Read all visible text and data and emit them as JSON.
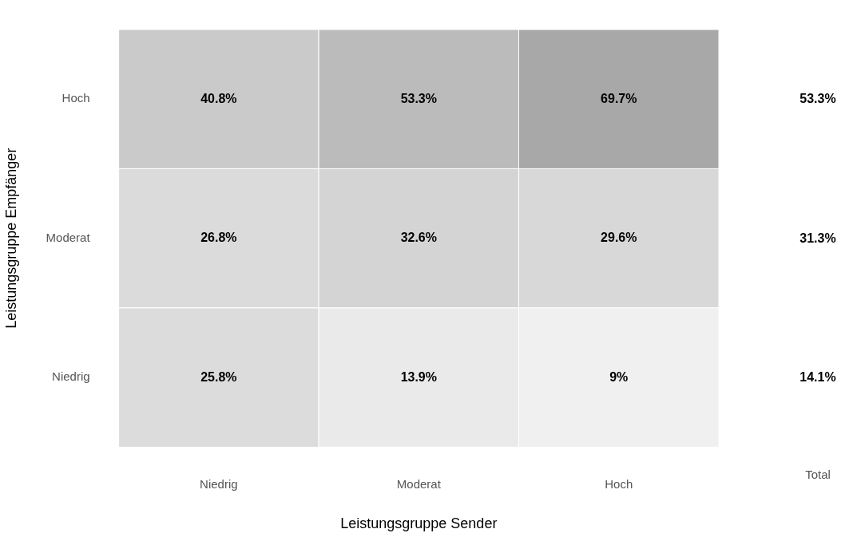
{
  "chart_data": [
    {
      "type": "heatmap",
      "xlabel": "Leistungsgruppe Sender",
      "ylabel": "Leistungsgruppe Empfänger",
      "categories": [
        "Niedrig",
        "Moderat",
        "Hoch"
      ],
      "y_categories": [
        "Hoch",
        "Moderat",
        "Niedrig"
      ],
      "cells": [
        [
          40.8,
          53.3,
          69.7
        ],
        [
          26.8,
          32.6,
          29.6
        ],
        [
          25.8,
          13.9,
          9
        ]
      ],
      "cell_labels": [
        [
          "40.8%",
          "53.3%",
          "69.7%"
        ],
        [
          "26.8%",
          "32.6%",
          "29.6%"
        ],
        [
          "25.8%",
          "13.9%",
          "9%"
        ]
      ]
    },
    {
      "type": "other",
      "categories": [
        "Total"
      ],
      "annotations": [
        "53.3%",
        "31.3%",
        "14.1%"
      ]
    }
  ]
}
